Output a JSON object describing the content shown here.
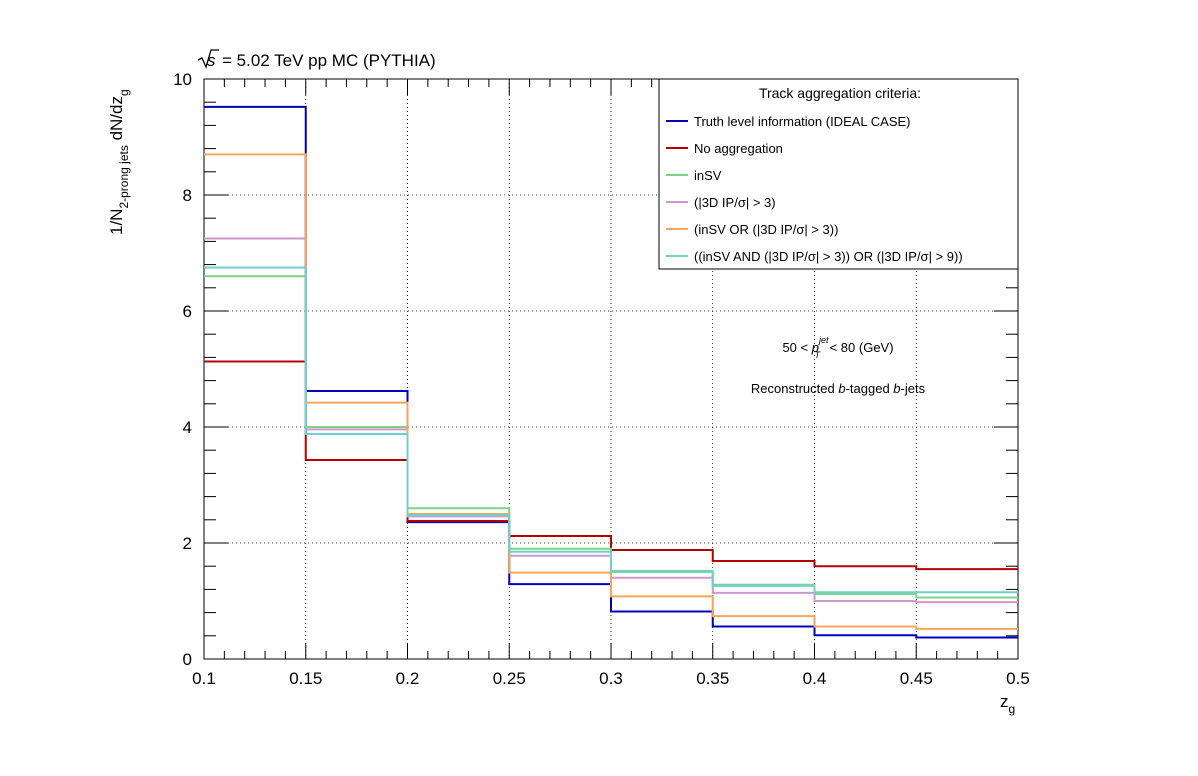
{
  "chart_data": {
    "type": "line",
    "title": "= 5.02 TeV pp MC (PYTHIA)",
    "title_sqrt": "s",
    "xlabel_main": "z",
    "xlabel_sub": "g",
    "ylabel_pre": "1/N",
    "ylabel_sub1": "2-prong jets",
    "ylabel_mid": " dN/dz",
    "ylabel_sub2": "g",
    "xlim": [
      0.1,
      0.5
    ],
    "ylim": [
      0,
      10
    ],
    "grid": true,
    "x_ticks": [
      "0.1",
      "0.15",
      "0.2",
      "0.25",
      "0.3",
      "0.35",
      "0.4",
      "0.45",
      "0.5"
    ],
    "y_ticks": [
      "0",
      "2",
      "4",
      "6",
      "8",
      "10"
    ],
    "bin_edges": [
      0.1,
      0.15,
      0.2,
      0.25,
      0.3,
      0.35,
      0.4,
      0.45,
      0.5
    ],
    "legend": {
      "title": "Track aggregation criteria:",
      "placement": "top-right"
    },
    "series": [
      {
        "name": "Truth level information (IDEAL CASE)",
        "color": "#0000bb",
        "values": [
          9.52,
          4.62,
          2.36,
          1.29,
          0.82,
          0.56,
          0.41,
          0.37
        ]
      },
      {
        "name": "No aggregation",
        "color": "#b30000",
        "values": [
          5.13,
          3.43,
          2.38,
          2.12,
          1.88,
          1.69,
          1.6,
          1.55
        ]
      },
      {
        "name": "inSV",
        "color": "#7fd389",
        "values": [
          6.6,
          4.0,
          2.6,
          1.9,
          1.52,
          1.28,
          1.12,
          1.06
        ]
      },
      {
        "name": "(|3D IP/σ| > 3)",
        "color": "#cc99cc",
        "values": [
          7.25,
          3.96,
          2.46,
          1.78,
          1.4,
          1.14,
          1.0,
          0.98
        ]
      },
      {
        "name": "(inSV OR (|3D IP/σ| > 3))",
        "color": "#f5a65b",
        "values": [
          8.7,
          4.42,
          2.5,
          1.49,
          1.08,
          0.74,
          0.56,
          0.52
        ]
      },
      {
        "name": "((inSV AND (|3D IP/σ| > 3)) OR (|3D IP/σ| > 9))",
        "color": "#70cfd0",
        "values": [
          6.75,
          3.88,
          2.48,
          1.85,
          1.5,
          1.26,
          1.15,
          1.15
        ]
      }
    ],
    "annotations": {
      "pt_range_pre": "50 < ",
      "pt_symbol": "p",
      "pt_sup": "jet",
      "pt_sub": "T",
      "pt_range_post": " < 80 (GeV)",
      "reco_pre": "Reconstructed ",
      "reco_b1": "b",
      "reco_mid": "-tagged ",
      "reco_b2": "b",
      "reco_post": "-jets"
    }
  }
}
